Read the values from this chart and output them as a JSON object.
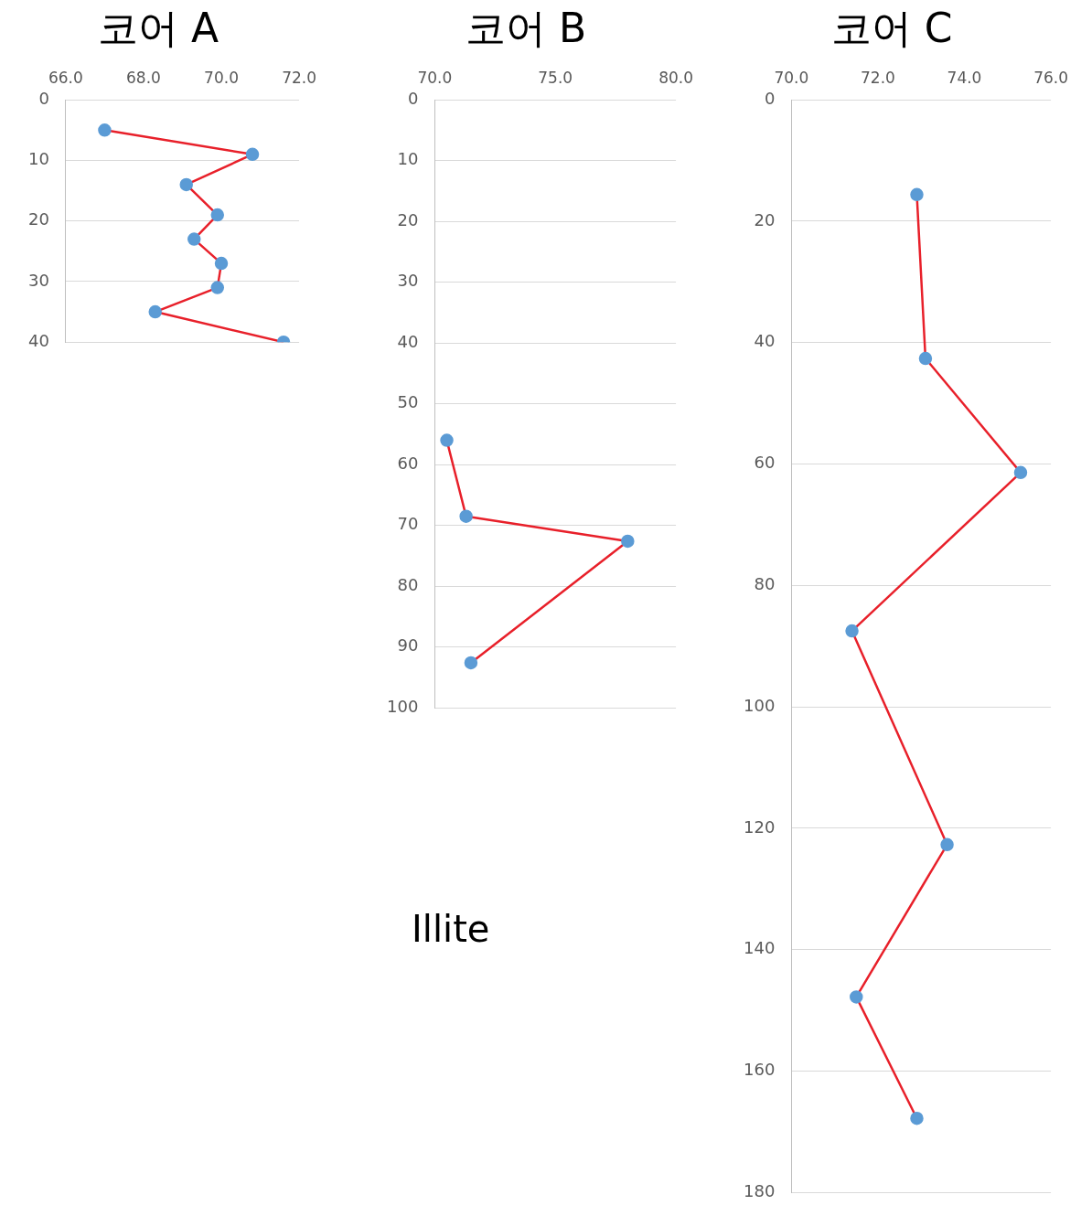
{
  "chart_data": [
    {
      "type": "line",
      "title": "코어 A",
      "xlim": [
        66,
        72
      ],
      "xticks": [
        {
          "value": 66,
          "label": "66.0"
        },
        {
          "value": 68,
          "label": "68.0"
        },
        {
          "value": 70,
          "label": "70.0"
        },
        {
          "value": 72,
          "label": "72.0"
        }
      ],
      "ylim": [
        40,
        0
      ],
      "yticks": [
        0,
        10,
        20,
        30,
        40
      ],
      "grid": "y",
      "marker": "circle",
      "legend": false,
      "series": [
        {
          "color": "#e8202a",
          "colors": [
            "#5b9bd5",
            "#5b9bd5",
            "#5b9bd5",
            "#5b9bd5",
            "#5b9bd5",
            "#5b9bd5",
            "#5b9bd5",
            "#5b9bd5",
            "#5b9bd5"
          ],
          "x": [
            67.0,
            70.8,
            69.1,
            69.9,
            69.3,
            70.0,
            69.9,
            68.3,
            71.6
          ],
          "values": [
            5,
            9,
            14,
            19,
            23,
            27,
            31,
            35,
            40
          ]
        }
      ]
    },
    {
      "type": "line",
      "title": "코어 B",
      "annotations": [
        "Illite"
      ],
      "xlim": [
        70,
        80
      ],
      "xticks": [
        {
          "value": 70,
          "label": "70.0"
        },
        {
          "value": 75,
          "label": "75.0"
        },
        {
          "value": 80,
          "label": "80.0"
        }
      ],
      "ylim": [
        100,
        0
      ],
      "yticks": [
        0,
        10,
        20,
        30,
        40,
        50,
        60,
        70,
        80,
        90,
        100
      ],
      "grid": "y",
      "marker": "circle",
      "legend": false,
      "series": [
        {
          "color": "#e8202a",
          "colors": [
            "#5b9bd5",
            "#5b9bd5",
            "#5b9bd5",
            "#5b9bd5"
          ],
          "x": [
            70.5,
            71.3,
            78.0,
            71.5
          ],
          "values": [
            56,
            68.5,
            72.6,
            92.6
          ]
        }
      ]
    },
    {
      "type": "line",
      "title": "코어 C",
      "xlim": [
        70,
        76
      ],
      "xticks": [
        {
          "value": 70,
          "label": "70.0"
        },
        {
          "value": 72,
          "label": "72.0"
        },
        {
          "value": 74,
          "label": "74.0"
        },
        {
          "value": 76,
          "label": "76.0"
        }
      ],
      "ylim": [
        180,
        0
      ],
      "yticks": [
        0,
        20,
        40,
        60,
        80,
        100,
        120,
        140,
        160,
        180
      ],
      "grid": "y",
      "marker": "circle",
      "legend": false,
      "series": [
        {
          "color": "#e8202a",
          "colors": [
            "#5b9bd5",
            "#5b9bd5",
            "#5b9bd5",
            "#5b9bd5",
            "#5b9bd5",
            "#5b9bd5",
            "#5b9bd5"
          ],
          "x": [
            72.9,
            73.1,
            75.3,
            71.4,
            73.6,
            71.5,
            72.9
          ],
          "values": [
            15.6,
            42.6,
            61.4,
            87.5,
            122.7,
            147.8,
            167.8
          ]
        }
      ]
    }
  ]
}
